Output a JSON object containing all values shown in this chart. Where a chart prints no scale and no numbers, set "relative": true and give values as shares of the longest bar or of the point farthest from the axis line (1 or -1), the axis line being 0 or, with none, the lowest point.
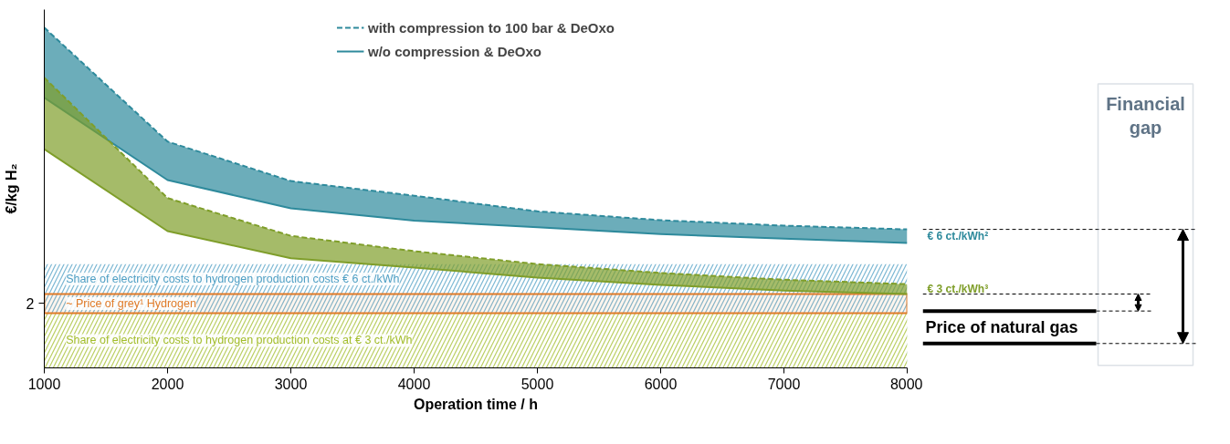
{
  "chart_data": {
    "type": "line",
    "relative": true,
    "xlabel": "Operation time / h",
    "ylabel": "€/kg H₂",
    "x": [
      1000,
      2000,
      3000,
      4000,
      5000,
      6000,
      7000,
      8000
    ],
    "xlim": [
      1000,
      8000
    ],
    "xticks": [
      1000,
      2000,
      3000,
      4000,
      5000,
      6000,
      7000,
      8000
    ],
    "series": [
      {
        "name": "with compression to 100 bar & DeOxo",
        "color": "#2e8a9c",
        "line_style": "dashed",
        "values": [
          1.0,
          0.665,
          0.549,
          0.506,
          0.46,
          0.434,
          0.418,
          0.407
        ],
        "lower": [
          0.794,
          0.552,
          0.469,
          0.433,
          0.413,
          0.393,
          0.38,
          0.367
        ],
        "upper": [
          1.0,
          0.665,
          0.549,
          0.506,
          0.46,
          0.434,
          0.418,
          0.407
        ]
      },
      {
        "name": "w/o compression & DeOxo",
        "color": "#2e8a9c",
        "line_style": "solid",
        "values": [
          0.794,
          0.552,
          0.469,
          0.433,
          0.413,
          0.393,
          0.38,
          0.367
        ]
      },
      {
        "color": "#7f9e2a",
        "line_style": "dashed",
        "values": [
          0.853,
          0.499,
          0.388,
          0.343,
          0.305,
          0.279,
          0.259,
          0.246
        ],
        "lower": [
          0.643,
          0.402,
          0.322,
          0.295,
          0.265,
          0.244,
          0.227,
          0.217
        ],
        "upper": [
          0.853,
          0.499,
          0.388,
          0.343,
          0.305,
          0.279,
          0.259,
          0.246
        ]
      },
      {
        "color": "#7f9e2a",
        "line_style": "solid",
        "values": [
          0.643,
          0.402,
          0.322,
          0.295,
          0.265,
          0.244,
          0.227,
          0.217
        ]
      }
    ],
    "bands": [
      {
        "axis": "y",
        "from": 0,
        "to": 0.305,
        "label": "Share of electricity costs to hydrogen production costs € 6 ct./kWh",
        "color": "#4f9fc4"
      },
      {
        "axis": "y",
        "from": 0,
        "to": 0.161,
        "label": "Share of electricity costs to hydrogen production costs at € 3 ct./kWh",
        "color": "#a3bd2c"
      },
      {
        "axis": "y",
        "from": 0.161,
        "to": 0.217,
        "label": "~ Price of grey¹ Hydrogen",
        "color": "#e07b28"
      }
    ],
    "annotations": [
      "2",
      "€ 6 ct./kWh²",
      "€ 3 ct./kWh³",
      "Financial gap",
      "Price of natural gas"
    ],
    "legend": "top",
    "grid": false,
    "marker": "none"
  }
}
